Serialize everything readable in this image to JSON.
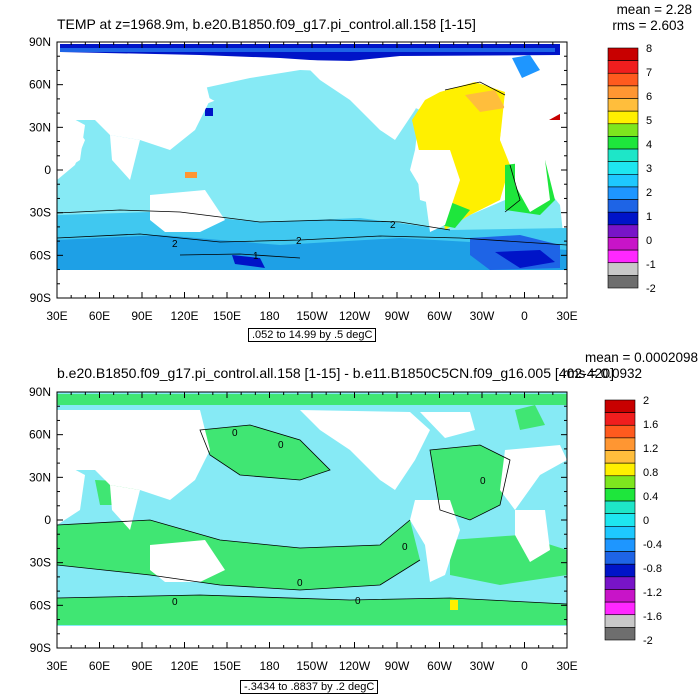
{
  "chart_data": [
    {
      "type": "heatmap",
      "title": "TEMP at z=1968.9m, b.e20.B1850.f09_g17.pi_control.all.158 [1-15]",
      "mean_label": "mean = 2.28",
      "rms_label": "rms = 2.603",
      "range_label": ".052 to 14.99 by .5 degC",
      "x_ticks": [
        "30E",
        "60E",
        "90E",
        "120E",
        "150E",
        "180",
        "150W",
        "120W",
        "90W",
        "60W",
        "30W",
        "0",
        "30E"
      ],
      "y_ticks": [
        "90N",
        "60N",
        "30N",
        "0",
        "30S",
        "60S",
        "90S"
      ],
      "colorbar": {
        "labels": [
          "8",
          "7",
          "6",
          "5",
          "4",
          "3",
          "2",
          "1",
          "0",
          "-1",
          "-2"
        ],
        "colors": [
          "#c80000",
          "#f01e1e",
          "#ff5a1e",
          "#ff9632",
          "#ffbe3c",
          "#fff000",
          "#7de61e",
          "#1ee63c",
          "#1ee6c8",
          "#1ee6f0",
          "#1ec8ff",
          "#1e96ff",
          "#1e64e6",
          "#0014c8",
          "#7814c8",
          "#c814c8",
          "#ff28ff",
          "#c8c8c8",
          "#6e6e6e"
        ]
      },
      "contours": [
        "2",
        "2",
        "2",
        "1"
      ]
    },
    {
      "type": "heatmap",
      "title": "b.e20.B1850.f09_g17.pi_control.all.158 [1-15] - b.e11.B1850C5CN.f09_g16.005 [402-420]",
      "mean_label": "mean = 0.0002098",
      "rms_label": "rms = 0.0932",
      "range_label": "-.3434 to .8837 by .2 degC",
      "x_ticks": [
        "30E",
        "60E",
        "90E",
        "120E",
        "150E",
        "180",
        "150W",
        "120W",
        "90W",
        "60W",
        "30W",
        "0",
        "30E"
      ],
      "y_ticks": [
        "90N",
        "60N",
        "30N",
        "0",
        "30S",
        "60S",
        "90S"
      ],
      "colorbar": {
        "labels": [
          "2",
          "1.6",
          "1.2",
          "0.8",
          "0.4",
          "0",
          "-0.4",
          "-0.8",
          "-1.2",
          "-1.6",
          "-2"
        ],
        "colors": [
          "#c80000",
          "#f01e1e",
          "#ff5a1e",
          "#ff9632",
          "#ffbe3c",
          "#fff000",
          "#7de61e",
          "#1ee63c",
          "#1ee6c8",
          "#1ee6f0",
          "#1ec8ff",
          "#1e96ff",
          "#1e64e6",
          "#0014c8",
          "#7814c8",
          "#c814c8",
          "#ff28ff",
          "#c8c8c8",
          "#6e6e6e"
        ]
      },
      "contours": [
        "0",
        "0",
        "0",
        "0",
        "0",
        "0",
        "0"
      ]
    }
  ]
}
